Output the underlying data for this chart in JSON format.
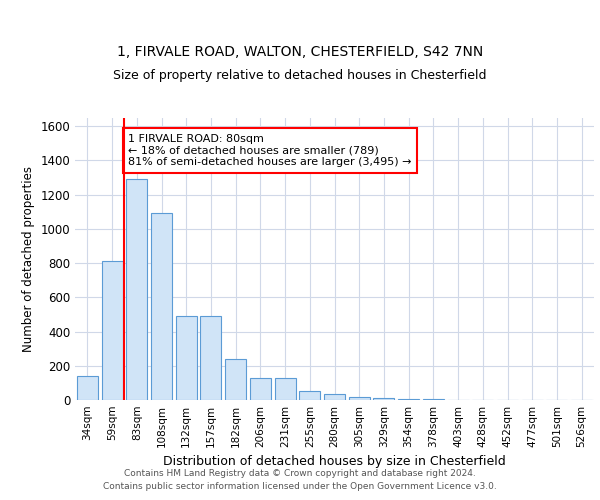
{
  "title1": "1, FIRVALE ROAD, WALTON, CHESTERFIELD, S42 7NN",
  "title2": "Size of property relative to detached houses in Chesterfield",
  "xlabel": "Distribution of detached houses by size in Chesterfield",
  "ylabel": "Number of detached properties",
  "categories": [
    "34sqm",
    "59sqm",
    "83sqm",
    "108sqm",
    "132sqm",
    "157sqm",
    "182sqm",
    "206sqm",
    "231sqm",
    "255sqm",
    "280sqm",
    "305sqm",
    "329sqm",
    "354sqm",
    "378sqm",
    "403sqm",
    "428sqm",
    "452sqm",
    "477sqm",
    "501sqm",
    "526sqm"
  ],
  "values": [
    140,
    810,
    1290,
    1095,
    490,
    490,
    240,
    130,
    130,
    55,
    35,
    20,
    10,
    5,
    3,
    2,
    2,
    2,
    2,
    2,
    2
  ],
  "bar_color": "#d0e4f7",
  "bar_edge_color": "#5b9bd5",
  "ylim": [
    0,
    1650
  ],
  "yticks": [
    0,
    200,
    400,
    600,
    800,
    1000,
    1200,
    1400,
    1600
  ],
  "property_label": "1 FIRVALE ROAD: 80sqm",
  "pct_smaller": "18% of detached houses are smaller (789)",
  "pct_larger": "81% of semi-detached houses are larger (3,495)",
  "vline_bin_index": 2,
  "footer1": "Contains HM Land Registry data © Crown copyright and database right 2024.",
  "footer2": "Contains public sector information licensed under the Open Government Licence v3.0.",
  "background_color": "#ffffff",
  "grid_color": "#d0d8e8"
}
